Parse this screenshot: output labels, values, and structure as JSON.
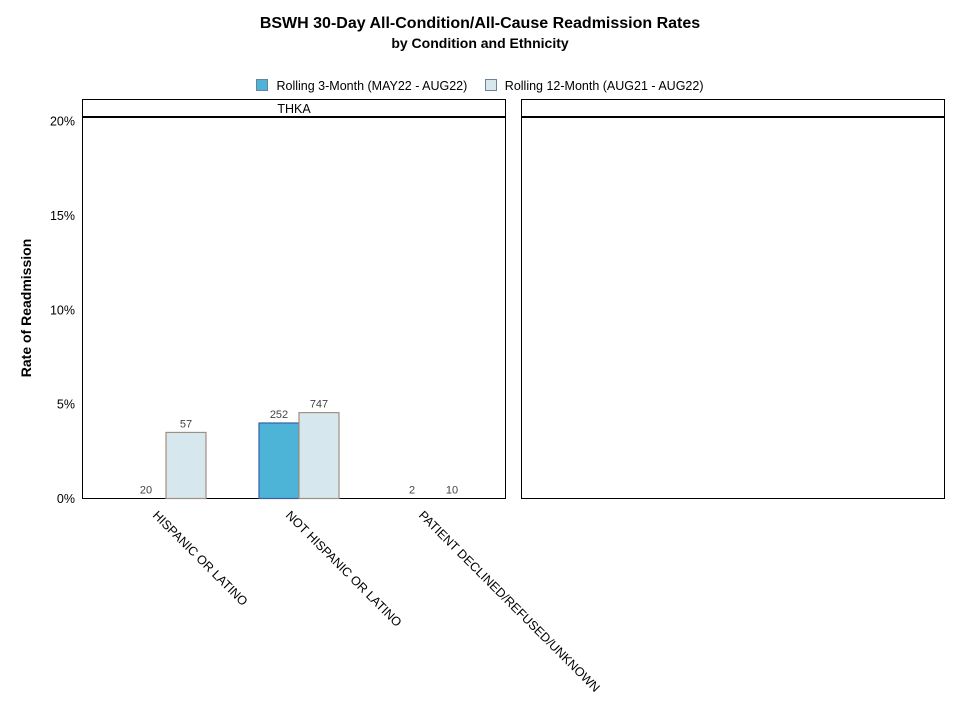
{
  "chart_data": {
    "type": "bar",
    "title": "BSWH 30-Day All-Condition/All-Cause Readmission Rates",
    "subtitle": "by Condition and Ethnicity",
    "ylabel": "Rate of Readmission",
    "ylim": [
      0,
      0.2
    ],
    "yticks": [
      0,
      0.05,
      0.1,
      0.15,
      0.2
    ],
    "ytick_labels": [
      "0%",
      "5%",
      "10%",
      "15%",
      "20%"
    ],
    "legend": [
      {
        "name": "Rolling 3-Month  (MAY22 - AUG22)",
        "color": "#4db3d7"
      },
      {
        "name": "Rolling 12-Month (AUG21 - AUG22)",
        "color": "#d6e8ee"
      }
    ],
    "categories": [
      "HISPANIC OR LATINO",
      "NOT HISPANIC OR LATINO",
      "PATIENT DECLINED/REFUSED/UNKNOWN"
    ],
    "panels": [
      {
        "label": "THKA",
        "series": [
          {
            "name": "Rolling 3-Month  (MAY22 - AUG22)",
            "values": [
              0.0,
              0.04,
              0.0
            ],
            "counts": [
              "20",
              "252",
              "2"
            ]
          },
          {
            "name": "Rolling 12-Month (AUG21 - AUG22)",
            "values": [
              0.035,
              0.0455,
              0.0
            ],
            "counts": [
              "57",
              "747",
              "10"
            ]
          }
        ]
      },
      {
        "label": "",
        "series": []
      }
    ]
  }
}
